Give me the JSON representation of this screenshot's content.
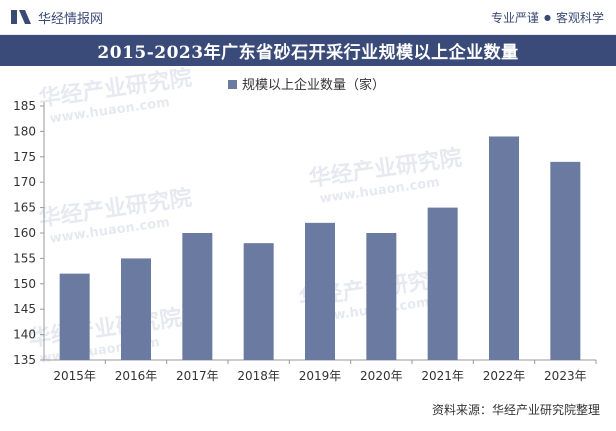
{
  "header": {
    "brand": "华经情报网",
    "slogan": [
      "专业严谨",
      "客观科学"
    ]
  },
  "chart_data": {
    "type": "bar",
    "title": "2015-2023年广东省砂石开采行业规模以上企业数量",
    "categories": [
      "2015年",
      "2016年",
      "2017年",
      "2018年",
      "2019年",
      "2020年",
      "2021年",
      "2022年",
      "2023年"
    ],
    "series": [
      {
        "name": "规模以上企业数量（家）",
        "values": [
          152,
          155,
          160,
          158,
          162,
          160,
          165,
          179,
          174
        ]
      }
    ],
    "ylim": [
      135,
      185
    ],
    "yticks": [
      135,
      140,
      145,
      150,
      155,
      160,
      165,
      170,
      175,
      180,
      185
    ],
    "xlabel": "",
    "ylabel": "",
    "grid": false,
    "legend": "top-center",
    "bar_color": "#6b7aa1"
  },
  "footer": {
    "source": "资料来源：华经产业研究院整理",
    "watermark_cn": "华经产业研究院",
    "watermark_en": "www.huaon.com"
  }
}
